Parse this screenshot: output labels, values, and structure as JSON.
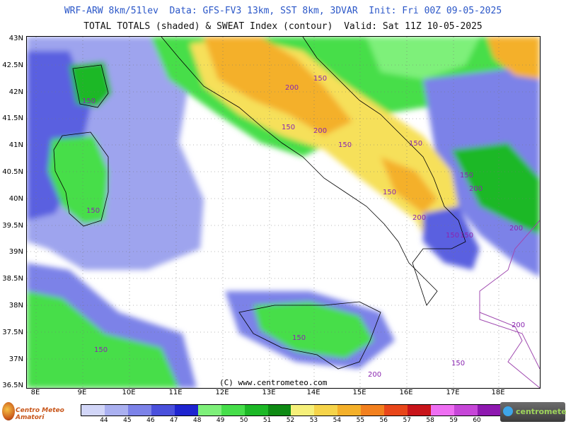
{
  "header": {
    "title1": "WRF-ARW 8km/51lev  Data: GFS-FV3 13km, SST 8km, 3DVAR  Init: Fri 00Z 09-05-2025",
    "title2": "TOTAL TOTALS (shaded) & SWEAT Index (contour)  Valid: Sat 11Z 10-05-2025"
  },
  "map": {
    "copyright": "(C) www.centrometeo.com",
    "lat_labels": [
      "43N",
      "42.5N",
      "42N",
      "41.5N",
      "41N",
      "40.5N",
      "40N",
      "39.5N",
      "39N",
      "38.5N",
      "38N",
      "37.5N",
      "37N",
      "36.5N"
    ],
    "lon_labels": [
      "8E",
      "9E",
      "10E",
      "11E",
      "12E",
      "13E",
      "14E",
      "15E",
      "16E",
      "17E",
      "18E"
    ],
    "contour_labels": [
      "150",
      "200",
      "150",
      "150",
      "200",
      "150",
      "150",
      "150",
      "200",
      "150",
      "200",
      "150",
      "150",
      "200",
      "250",
      "150",
      "150",
      "150",
      "200",
      "200",
      "150"
    ]
  },
  "legend": {
    "values": [
      "44",
      "45",
      "46",
      "47",
      "48",
      "49",
      "50",
      "51",
      "52",
      "53",
      "54",
      "55",
      "56",
      "57",
      "58",
      "59",
      "60"
    ],
    "colors": [
      "#d2d6f8",
      "#aab0f0",
      "#7c82e8",
      "#4a50dc",
      "#1e24d0",
      "#7ef07a",
      "#46de4a",
      "#1cb826",
      "#0e8a14",
      "#f6f07a",
      "#f6d44a",
      "#f4b02a",
      "#f2801e",
      "#e8461a",
      "#c8141a",
      "#ee6ef2",
      "#c646d8",
      "#8e18b0"
    ]
  },
  "logos": {
    "left": "Centro Meteo Amatori",
    "right": "centrometeo"
  }
}
